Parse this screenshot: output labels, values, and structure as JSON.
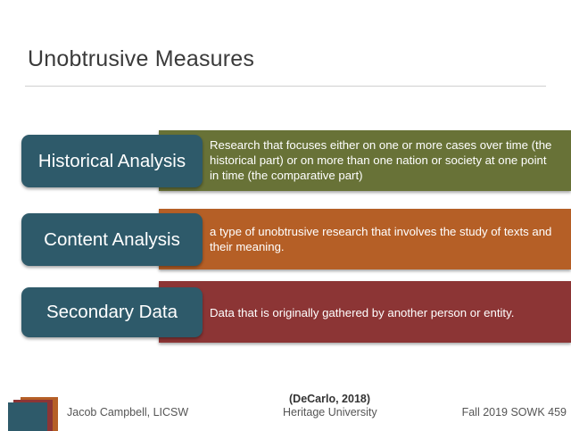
{
  "slide": {
    "title": "Unobtrusive Measures"
  },
  "rows": [
    {
      "label": "Historical Analysis",
      "description": "Research that focuses either on one or more cases over time (the historical part) or on more than one nation or society at one point in time (the comparative part)",
      "bar_color": "#687237",
      "label_color": "#2e5a6a"
    },
    {
      "label": "Content Analysis",
      "description": "a type of unobtrusive research that involves the study of texts and their meaning.",
      "bar_color": "#b55f26",
      "label_color": "#2e5a6a"
    },
    {
      "label": "Secondary Data",
      "description": "Data that is originally gathered by another person or entity.",
      "bar_color": "#8c3535",
      "label_color": "#2e5a6a"
    }
  ],
  "footer": {
    "citation": "(DeCarlo, 2018)",
    "author": "Jacob Campbell, LICSW",
    "institution": "Heritage University",
    "course": "Fall 2019 SOWK 459"
  }
}
